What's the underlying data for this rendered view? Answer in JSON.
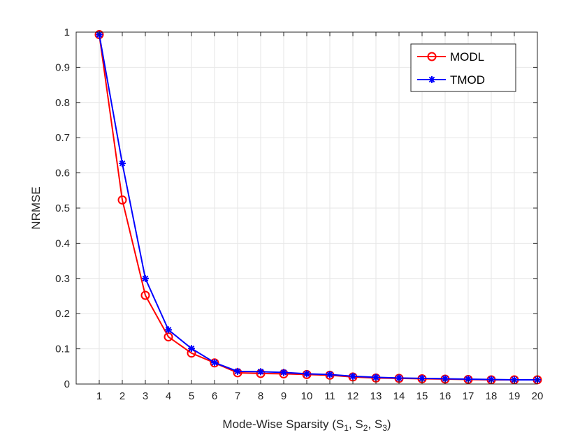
{
  "chart_data": {
    "type": "line",
    "title": "",
    "xlabel": "Mode-Wise Sparsity (S_1, S_2, S_3)",
    "xlabel_parts": [
      "Mode-Wise Sparsity (S",
      "1",
      ", S",
      "2",
      ", S",
      "3",
      ")"
    ],
    "ylabel": "NRMSE",
    "x": [
      1,
      2,
      3,
      4,
      5,
      6,
      7,
      8,
      9,
      10,
      11,
      12,
      13,
      14,
      15,
      16,
      17,
      18,
      19,
      20
    ],
    "xlim": [
      0,
      20
    ],
    "ylim": [
      0,
      1
    ],
    "xticks": [
      1,
      2,
      3,
      4,
      5,
      6,
      7,
      8,
      9,
      10,
      11,
      12,
      13,
      14,
      15,
      16,
      17,
      18,
      19,
      20
    ],
    "yticks": [
      0,
      0.1,
      0.2,
      0.3,
      0.4,
      0.5,
      0.6,
      0.7,
      0.8,
      0.9,
      1
    ],
    "ytick_labels": [
      "0",
      "0.1",
      "0.2",
      "0.3",
      "0.4",
      "0.5",
      "0.6",
      "0.7",
      "0.8",
      "0.9",
      "1"
    ],
    "grid": true,
    "legend_position": "top-right",
    "series": [
      {
        "name": "MODL",
        "color": "#ff0000",
        "marker": "circle",
        "values": [
          0.993,
          0.523,
          0.252,
          0.134,
          0.088,
          0.06,
          0.032,
          0.03,
          0.029,
          0.027,
          0.025,
          0.02,
          0.017,
          0.016,
          0.015,
          0.014,
          0.013,
          0.012,
          0.012,
          0.012
        ]
      },
      {
        "name": "TMOD",
        "color": "#0000ff",
        "marker": "asterisk",
        "values": [
          0.993,
          0.627,
          0.3,
          0.154,
          0.101,
          0.061,
          0.036,
          0.035,
          0.033,
          0.029,
          0.027,
          0.022,
          0.019,
          0.017,
          0.016,
          0.015,
          0.014,
          0.013,
          0.012,
          0.012
        ]
      }
    ]
  }
}
